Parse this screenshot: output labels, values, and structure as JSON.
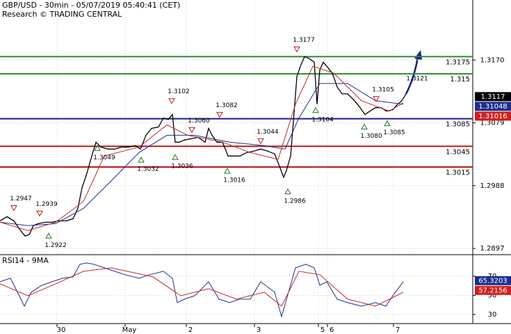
{
  "chart_data": [
    {
      "type": "line",
      "title": "GBP/USD - 30min - 05/07/2019 05:40:41 (CET)",
      "subtitle": "Research © TRADING CENTRAL",
      "xlim": [
        0,
        170
      ],
      "ylim": [
        1.2889,
        1.3257
      ],
      "yticks": [
        1.2897,
        1.2988,
        1.3079,
        {
          "value": 1.317,
          "label": "1.3170"
        }
      ],
      "grid": true,
      "series": [
        {
          "color": "#000000",
          "x": [
            0,
            2.5,
            5,
            7,
            9,
            10.5,
            12,
            13.75,
            16.25,
            18.75,
            21.25,
            23.75,
            26.25,
            28,
            29.5,
            31.25,
            33,
            34.5,
            36.25,
            38.75,
            41.25,
            43.75,
            46.25,
            48.75,
            50.5,
            52.5,
            54.5,
            57,
            58.75,
            60.5,
            62,
            63,
            64.5,
            66.25,
            68.75,
            71.25,
            73.75,
            75,
            76.25,
            78,
            80,
            82,
            83.75,
            86.25,
            88.75,
            91.25,
            93.75,
            96.25,
            98.75,
            100.5,
            102,
            103,
            104.5,
            105.5,
            106.75,
            108,
            109.5,
            111.25,
            113,
            114,
            115,
            116.25,
            117.5,
            119.5,
            121.25,
            123,
            125,
            127.5,
            129.5,
            131.25,
            133,
            135,
            137,
            139,
            141.25,
            143,
            144.5,
            146
          ],
          "values": [
            1.2937,
            1.2943,
            1.2937,
            1.2925,
            1.2915,
            1.2917,
            1.293,
            1.2933,
            1.2935,
            1.2935,
            1.2937,
            1.2937,
            1.294,
            1.2955,
            1.2985,
            1.3006,
            1.3031,
            1.3051,
            1.3044,
            1.3041,
            1.3041,
            1.3044,
            1.3044,
            1.3046,
            1.3041,
            1.3061,
            1.3071,
            1.3073,
            1.3086,
            1.3084,
            1.3091,
            1.3051,
            1.3051,
            1.3054,
            1.3056,
            1.3058,
            1.3051,
            1.3071,
            1.3061,
            1.3051,
            1.3051,
            1.3031,
            1.3031,
            1.3031,
            1.3036,
            1.3038,
            1.3041,
            1.3038,
            1.3034,
            1.3016,
            1.3,
            1.301,
            1.3031,
            1.3081,
            1.3146,
            1.3161,
            1.3175,
            1.3172,
            1.3167,
            1.3106,
            1.3156,
            1.3167,
            1.3161,
            1.3151,
            1.3131,
            1.3121,
            1.3121,
            1.3111,
            1.3101,
            1.3091,
            1.3096,
            1.3101,
            1.3101,
            1.3096,
            1.3098,
            1.3106,
            1.3111,
            1.3121
          ]
        },
        {
          "color": "#1c2f8f",
          "x": [
            0,
            10,
            20,
            30,
            40,
            50,
            60,
            70,
            82.5,
            95,
            102.5,
            107.5,
            115,
            125,
            135,
            145
          ],
          "values": [
            1.2935,
            1.293,
            1.2933,
            1.2955,
            1.2995,
            1.3036,
            1.3061,
            1.3061,
            1.3051,
            1.3046,
            1.3041,
            1.3086,
            1.3136,
            1.3136,
            1.3111,
            1.3106
          ]
        },
        {
          "color": "#c0282a",
          "x": [
            0,
            10,
            20,
            30,
            37.5,
            50,
            60,
            67.5,
            80,
            90,
            100,
            106.25,
            112.5,
            120,
            130,
            140,
            145
          ],
          "values": [
            1.2935,
            1.2923,
            1.2935,
            1.2965,
            1.3031,
            1.3044,
            1.3076,
            1.3061,
            1.3051,
            1.3036,
            1.3026,
            1.3106,
            1.3161,
            1.3151,
            1.3111,
            1.3096,
            1.3108
          ]
        }
      ],
      "levels": [
        {
          "value": 1.3175,
          "color": "#2e8b2e"
        },
        {
          "value": 1.315,
          "color": "#2e8b2e"
        },
        {
          "value": 1.3085,
          "color": "#1c1c8c"
        },
        {
          "value": 1.3045,
          "color": "#c01818"
        },
        {
          "value": 1.3015,
          "color": "#c01818"
        }
      ],
      "price_tags": [
        {
          "value": 1.3117,
          "color": "#000000"
        },
        {
          "value": 1.31048,
          "color": "#1c2f8f"
        },
        {
          "value": 1.31016,
          "color": "#d02020"
        }
      ],
      "annotations": [
        {
          "x": 5,
          "value": 1.2947,
          "dir": "down"
        },
        {
          "x": 14.25,
          "value": 1.2939,
          "dir": "down"
        },
        {
          "x": 17.5,
          "value": 1.2922,
          "dir": "up"
        },
        {
          "x": 35,
          "value": 1.3049,
          "dir": "up"
        },
        {
          "x": 50.75,
          "value": 1.3032,
          "dir": "up"
        },
        {
          "x": 61.75,
          "value": 1.3102,
          "dir": "down"
        },
        {
          "x": 63,
          "value": 1.3036,
          "dir": "up"
        },
        {
          "x": 69,
          "value": 1.306,
          "label": "1.3060",
          "dir": "down"
        },
        {
          "x": 79,
          "value": 1.3082,
          "dir": "down"
        },
        {
          "x": 81.75,
          "value": 1.3016,
          "dir": "up"
        },
        {
          "x": 93.75,
          "value": 1.3044,
          "dir": "down"
        },
        {
          "x": 103.5,
          "value": 1.2986,
          "dir": "up"
        },
        {
          "x": 106.75,
          "value": 1.3177,
          "dir": "down"
        },
        {
          "x": 113.5,
          "value": 1.3104,
          "dir": "up"
        },
        {
          "x": 131,
          "value": 1.308,
          "label": "1.3080",
          "dir": "up"
        },
        {
          "x": 135.25,
          "value": 1.3105,
          "dir": "down"
        },
        {
          "x": 139.25,
          "value": 1.3085,
          "dir": "up"
        },
        {
          "x": 147.5,
          "value": 1.3121
        }
      ]
    },
    {
      "type": "line",
      "title": "RSI14 - 9MA",
      "xlim": [
        0,
        170
      ],
      "ylim": [
        20.5,
        91
      ],
      "yticks": [
        30,
        50,
        70
      ],
      "xticks": [
        {
          "value": 20.5,
          "label": "30"
        },
        {
          "value": 45,
          "label": "May"
        },
        {
          "value": 67,
          "label": "2"
        },
        {
          "value": 91.5,
          "label": "3"
        },
        {
          "value": 114.5,
          "label": "5"
        },
        {
          "value": 117.75,
          "label": "6"
        },
        {
          "value": 141.5,
          "label": "7"
        }
      ],
      "grid": true,
      "series": [
        {
          "color": "#1c2f8f",
          "x": [
            0,
            3.75,
            6.25,
            8.75,
            11.25,
            15,
            18.75,
            22.5,
            26.25,
            28.75,
            31.25,
            33.75,
            37.5,
            41.25,
            45,
            50,
            53.75,
            58.75,
            62,
            63.75,
            66.25,
            70,
            75,
            78.75,
            82.5,
            86.25,
            90,
            93.75,
            98.75,
            101.25,
            103.75,
            106.25,
            110,
            113,
            115,
            117.5,
            121.25,
            125,
            130,
            135,
            138.75,
            141.25,
            145
          ],
          "values": [
            64.2,
            67.8,
            53.3,
            38.7,
            53.3,
            60.5,
            64.2,
            67.8,
            69.3,
            82.4,
            83.8,
            82.4,
            78.7,
            75.1,
            71.5,
            67.8,
            71.5,
            75.1,
            67.8,
            42.4,
            46,
            49.6,
            64.2,
            46,
            42.4,
            46,
            46,
            64.2,
            53.3,
            27.8,
            53.3,
            78.7,
            82.4,
            78.7,
            60.5,
            64.2,
            46,
            42.4,
            38.7,
            42.4,
            38.7,
            49.6,
            64.2
          ]
        },
        {
          "color": "#c0282a",
          "x": [
            0,
            10,
            20,
            30,
            40,
            55,
            65,
            75,
            85,
            95,
            101.25,
            107.5,
            115,
            125,
            135,
            142.5,
            145
          ],
          "values": [
            62,
            49.6,
            62,
            75.1,
            78.7,
            69.3,
            49.6,
            56.9,
            46,
            53.3,
            38.7,
            75.1,
            71.5,
            46,
            38.7,
            49.6,
            53.3
          ]
        }
      ],
      "price_tags": [
        {
          "value": 65.3203,
          "color": "#1c2f8f"
        },
        {
          "value": 57.2156,
          "color": "#d02020"
        }
      ]
    }
  ]
}
